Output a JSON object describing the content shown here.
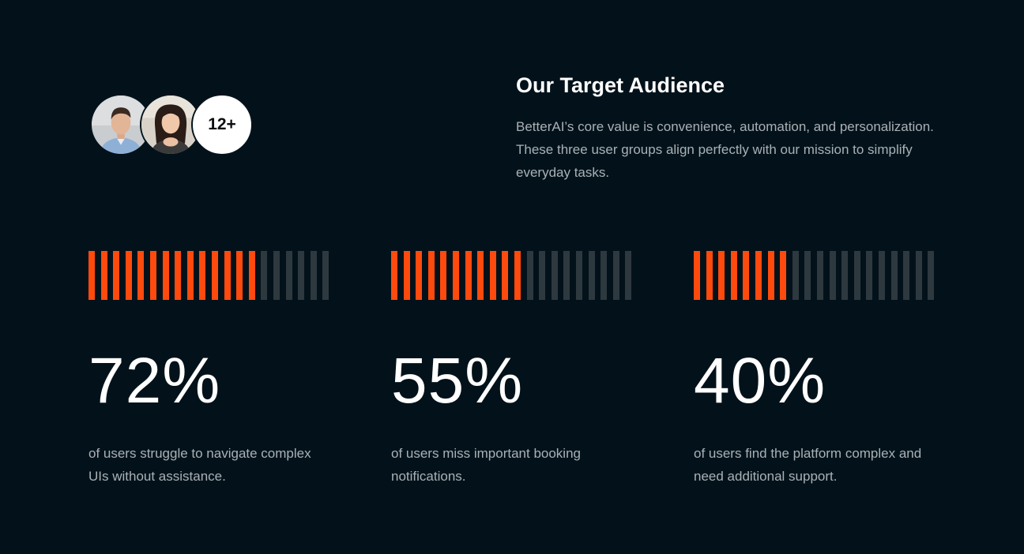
{
  "audience": {
    "extra_count": "12+"
  },
  "intro": {
    "title": "Our Target Audience",
    "body": "BetterAI’s core value is convenience, automation, and personalization. These three user groups align perfectly with our mission to simplify everyday tasks."
  },
  "colors": {
    "background": "#03121a",
    "accent": "#ff4a0e",
    "bar_empty": "#2d393e",
    "muted_text": "#a9b1b6"
  },
  "stats": [
    {
      "value": "72%",
      "fraction": 0.72,
      "description": "of users struggle to navigate complex UIs without assistance."
    },
    {
      "value": "55%",
      "fraction": 0.55,
      "description": "of users miss important booking notifications."
    },
    {
      "value": "40%",
      "fraction": 0.4,
      "description": "of users find the platform complex and need additional support."
    }
  ]
}
